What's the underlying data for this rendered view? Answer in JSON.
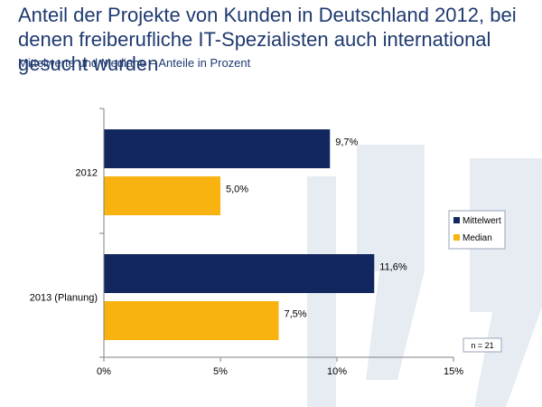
{
  "header": {
    "title": "Anteil der Projekte von Kunden in Deutschland 2012, bei denen freiberufliche IT-Spezialisten auch international gesucht wurden",
    "subtitle": "Mittelwerte und Mediane – Anteile in Prozent"
  },
  "note": "n = 21",
  "colors": {
    "mittelwert": "#13275f",
    "median": "#f8b311",
    "text": "#1f3a70",
    "watermark": "#e7ecf3"
  },
  "chart_data": {
    "type": "bar",
    "orientation": "horizontal",
    "categories": [
      "2012",
      "2013 (Planung)"
    ],
    "series": [
      {
        "name": "Mittelwert",
        "values": [
          9.7,
          11.6
        ],
        "labels": [
          "9,7%",
          "11,6%"
        ]
      },
      {
        "name": "Median",
        "values": [
          5.0,
          7.5
        ],
        "labels": [
          "5,0%",
          "7,5%"
        ]
      }
    ],
    "xlim": [
      0,
      15
    ],
    "xticks": [
      0,
      5,
      10,
      15
    ],
    "xtick_labels": [
      "0%",
      "5%",
      "10%",
      "15%"
    ],
    "grid": false,
    "legend_position": "right"
  }
}
